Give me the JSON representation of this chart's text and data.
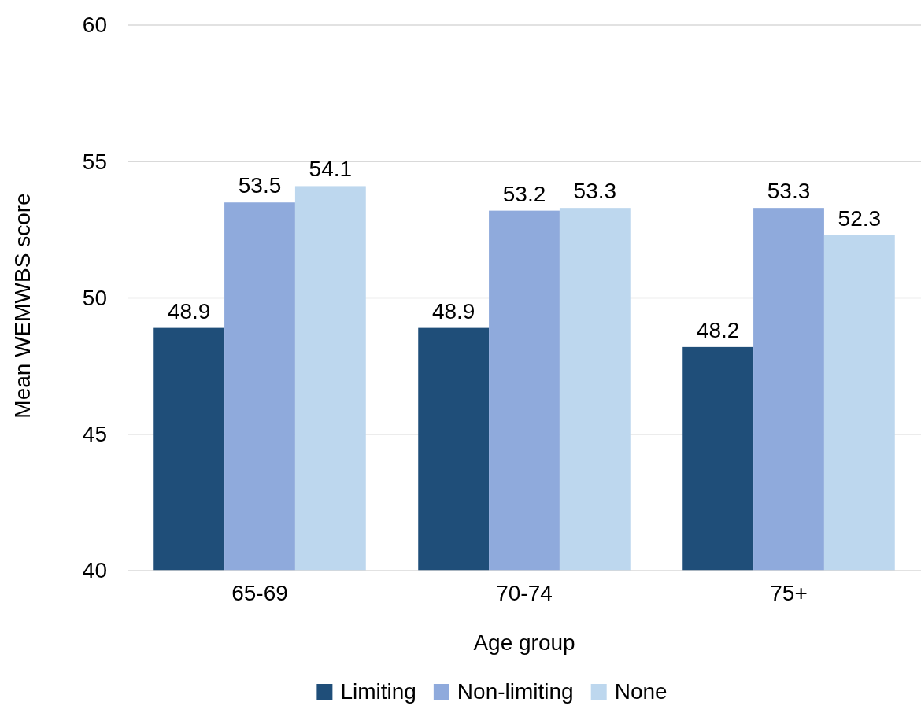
{
  "chart_data": {
    "type": "bar",
    "xlabel": "Age group",
    "ylabel": "Mean WEMWBS score",
    "categories": [
      "65-69",
      "70-74",
      "75+"
    ],
    "series": [
      {
        "name": "Limiting",
        "color": "#1f4e79",
        "values": [
          48.9,
          48.9,
          48.2
        ]
      },
      {
        "name": "Non-limiting",
        "color": "#8faadc",
        "values": [
          53.5,
          53.2,
          53.3
        ]
      },
      {
        "name": "None",
        "color": "#bdd7ee",
        "values": [
          54.1,
          53.3,
          52.3
        ]
      }
    ],
    "ylim": [
      40,
      60
    ],
    "yticks": [
      40,
      45,
      50,
      55,
      60
    ],
    "grid": "y",
    "legend": "bottom",
    "data_labels": true
  }
}
